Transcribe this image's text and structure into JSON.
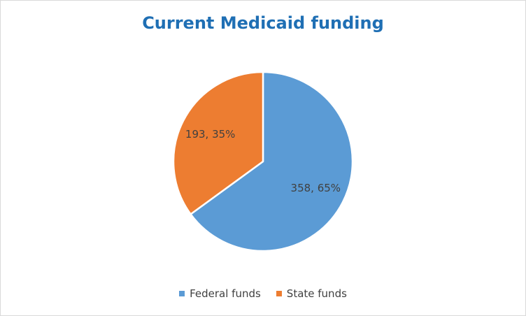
{
  "chart_data": {
    "type": "pie",
    "title": "Current Medicaid funding",
    "legend_position": "bottom",
    "slices": [
      {
        "name": "Federal funds",
        "value": 358,
        "percent": 65,
        "label": "358, 65%",
        "color": "#5b9bd5"
      },
      {
        "name": "State funds",
        "value": 193,
        "percent": 35,
        "label": "193, 35%",
        "color": "#ed7d31"
      }
    ]
  }
}
